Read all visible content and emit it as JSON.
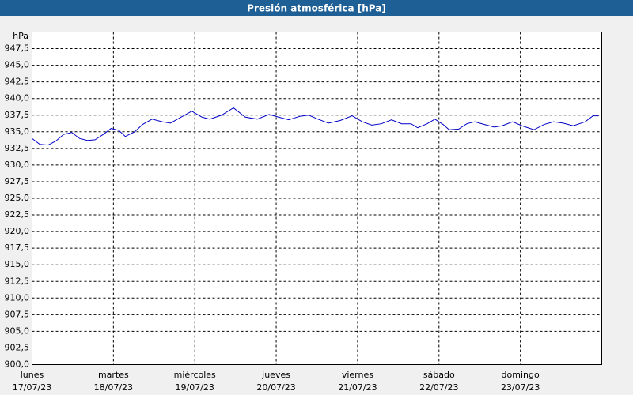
{
  "chart_data": {
    "type": "line",
    "title": "Presión atmosférica [hPa]",
    "y_label": "hPa",
    "xlim": [
      0,
      168
    ],
    "ylim": [
      900,
      950
    ],
    "xticks": [
      {
        "value": 0,
        "label": "lunes"
      },
      {
        "value": 24,
        "label": "martes"
      },
      {
        "value": 48,
        "label": "miércoles"
      },
      {
        "value": 72,
        "label": "jueves"
      },
      {
        "value": 96,
        "label": "viernes"
      },
      {
        "value": 120,
        "label": "sábado"
      },
      {
        "value": 144,
        "label": "domingo"
      }
    ],
    "xtick_dates": [
      "17/07/23",
      "18/07/23",
      "19/07/23",
      "20/07/23",
      "21/07/23",
      "22/07/23",
      "23/07/23"
    ],
    "yticks": [
      {
        "value": 900,
        "label": "900,0"
      },
      {
        "value": 902.5,
        "label": "902,5"
      },
      {
        "value": 905,
        "label": "905,0"
      },
      {
        "value": 907.5,
        "label": "907,5"
      },
      {
        "value": 910,
        "label": "910,0"
      },
      {
        "value": 912.5,
        "label": "912,5"
      },
      {
        "value": 915,
        "label": "915,0"
      },
      {
        "value": 917.5,
        "label": "917,5"
      },
      {
        "value": 920,
        "label": "920,0"
      },
      {
        "value": 922.5,
        "label": "922,5"
      },
      {
        "value": 925,
        "label": "925,0"
      },
      {
        "value": 927.5,
        "label": "927,5"
      },
      {
        "value": 930,
        "label": "930,0"
      },
      {
        "value": 932.5,
        "label": "932,5"
      },
      {
        "value": 935,
        "label": "935,0"
      },
      {
        "value": 937.5,
        "label": "937,5"
      },
      {
        "value": 940,
        "label": "940,0"
      },
      {
        "value": 942.5,
        "label": "942,5"
      },
      {
        "value": 945,
        "label": "945,0"
      },
      {
        "value": 947.5,
        "label": "947,5"
      }
    ],
    "grid": true,
    "x": [
      0,
      2.3,
      4.7,
      7,
      9.3,
      11.7,
      14,
      16.3,
      18.6,
      21,
      23.3,
      25.6,
      27.5,
      30.3,
      32.6,
      35.4,
      38.4,
      40.8,
      44.3,
      47.1,
      50.1,
      52.4,
      55.9,
      59.4,
      62.9,
      66.4,
      69.9,
      72.7,
      75.7,
      78.8,
      81.6,
      84.3,
      87.4,
      90.9,
      94.4,
      97.4,
      100.2,
      103,
      106,
      109,
      111.8,
      113.7,
      116.5,
      118.8,
      121.2,
      123,
      125.8,
      128.2,
      130.5,
      133.3,
      136.3,
      138.6,
      141.7,
      144.5,
      148,
      151,
      153.8,
      156.6,
      159.6,
      163.1,
      165.4,
      167.1
    ],
    "series": [
      {
        "color": "#0000c8",
        "values": [
          934.0,
          933.1,
          933.0,
          933.6,
          934.6,
          934.9,
          934.0,
          933.7,
          933.8,
          934.6,
          935.5,
          935.2,
          934.3,
          935.0,
          936.1,
          936.9,
          936.5,
          936.3,
          937.3,
          938.1,
          937.2,
          936.9,
          937.5,
          938.6,
          937.2,
          936.9,
          937.6,
          937.2,
          936.8,
          937.3,
          937.5,
          936.9,
          936.3,
          936.7,
          937.4,
          936.5,
          936.0,
          936.2,
          936.8,
          936.2,
          936.2,
          935.6,
          936.2,
          936.9,
          936.1,
          935.3,
          935.4,
          936.2,
          936.5,
          936.1,
          935.7,
          935.9,
          936.5,
          935.9,
          935.3,
          936.1,
          936.5,
          936.3,
          935.9,
          936.5,
          937.4,
          937.4
        ]
      }
    ]
  }
}
